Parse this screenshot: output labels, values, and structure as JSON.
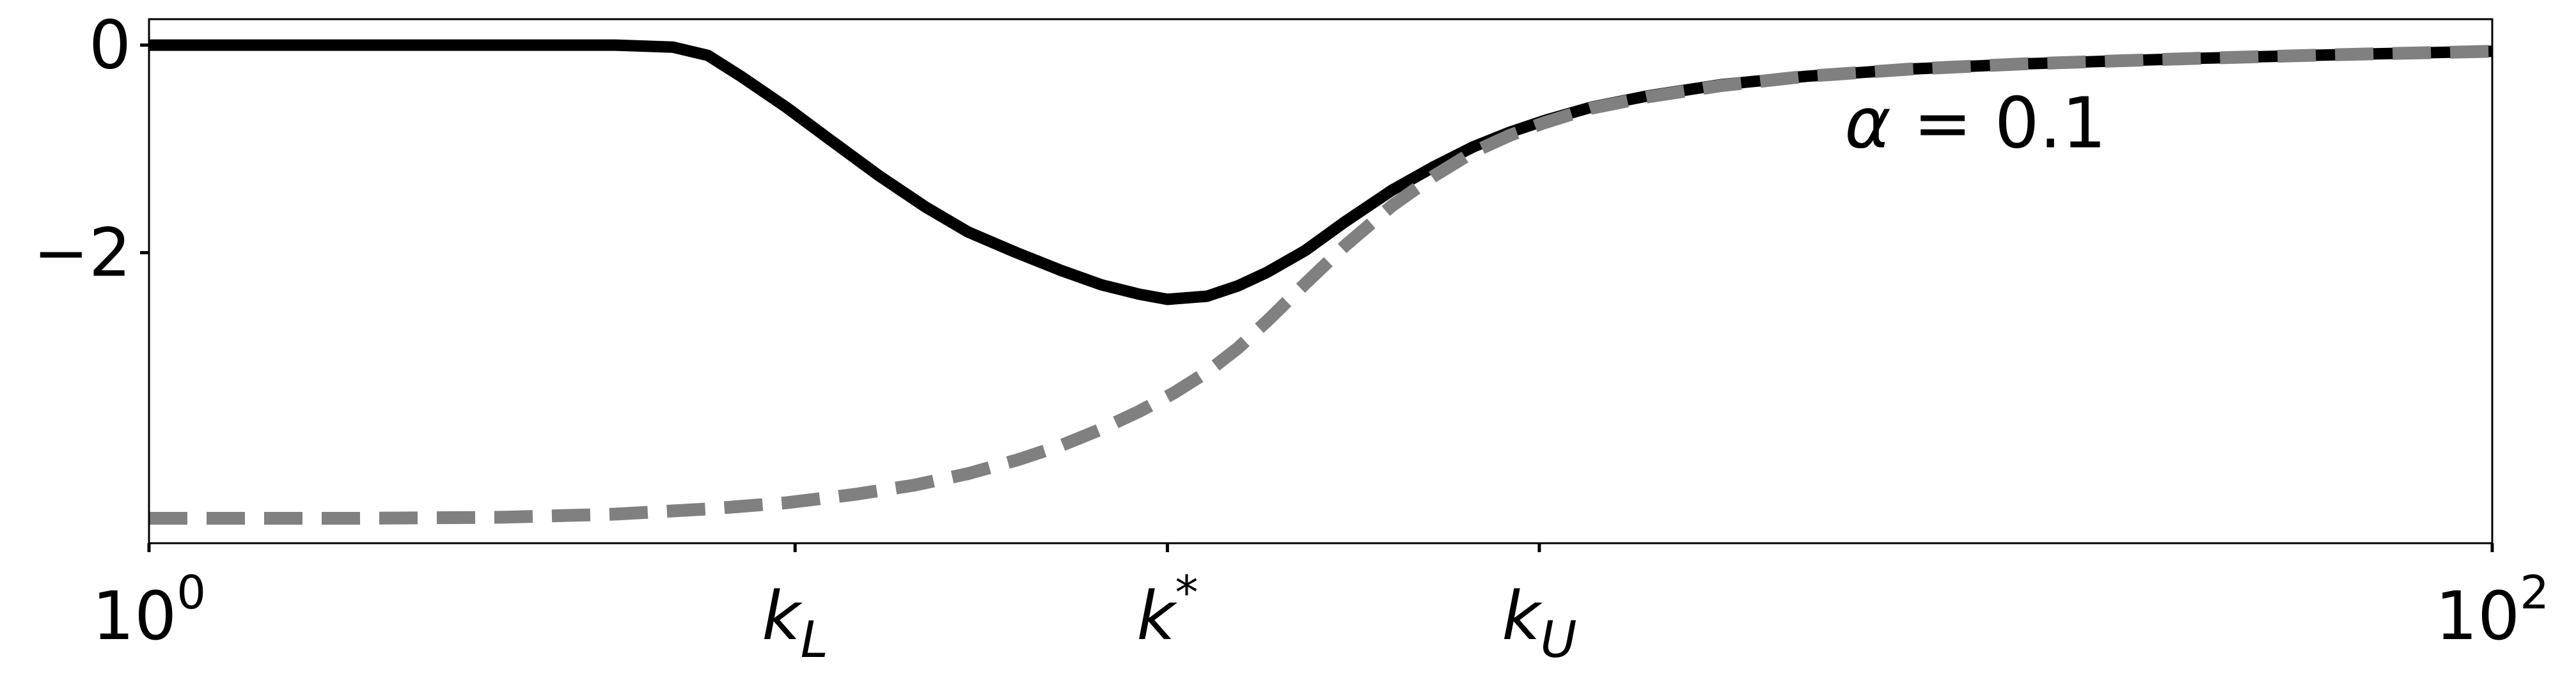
{
  "chart_data": {
    "type": "line",
    "x_scale": "log",
    "xlim": [
      1,
      100
    ],
    "ylim": [
      -4.8,
      0.25
    ],
    "grid": false,
    "legend": "none",
    "x_ticks": [
      {
        "value": 1,
        "label_base": "10",
        "label_sup": "0",
        "label_sub": ""
      },
      {
        "value": 3.56,
        "label_base": "k",
        "label_sup": "",
        "label_sub": "L"
      },
      {
        "value": 7.4,
        "label_base": "k",
        "label_sup": "*",
        "label_sub": ""
      },
      {
        "value": 15.37,
        "label_base": "k",
        "label_sup": "",
        "label_sub": "U"
      },
      {
        "value": 100,
        "label_base": "10",
        "label_sup": "2",
        "label_sub": ""
      }
    ],
    "y_ticks": [
      {
        "value": 0,
        "label": "0"
      },
      {
        "value": -2,
        "label": "−2"
      }
    ],
    "annotation": {
      "text_symbol": "α",
      "text_rest": " = 0.1",
      "x": 28,
      "y": -0.75
    },
    "series": [
      {
        "style": "solid",
        "color": "#000000",
        "x": [
          1,
          1.5,
          2,
          2.5,
          2.8,
          3.0,
          3.2,
          3.5,
          3.8,
          4.2,
          4.6,
          5.0,
          5.5,
          6.0,
          6.5,
          7.0,
          7.4,
          8.0,
          8.5,
          9.0,
          9.7,
          10.5,
          11.5,
          12.5,
          13.5,
          14.5,
          15.5,
          17,
          19,
          22,
          26,
          32,
          40,
          55,
          75,
          100
        ],
        "y": [
          0.0,
          0.0,
          0.0,
          0.0,
          -0.02,
          -0.1,
          -0.3,
          -0.6,
          -0.9,
          -1.26,
          -1.56,
          -1.8,
          -2.0,
          -2.17,
          -2.31,
          -2.4,
          -2.45,
          -2.42,
          -2.32,
          -2.19,
          -1.98,
          -1.7,
          -1.4,
          -1.17,
          -0.98,
          -0.84,
          -0.73,
          -0.6,
          -0.49,
          -0.38,
          -0.3,
          -0.23,
          -0.18,
          -0.13,
          -0.09,
          -0.06
        ]
      },
      {
        "style": "dashed",
        "color": "#808080",
        "x": [
          1,
          1.5,
          2,
          2.5,
          3.0,
          3.5,
          4.0,
          4.5,
          5.0,
          5.5,
          6.0,
          6.5,
          7.0,
          7.5,
          8.0,
          8.5,
          9.0,
          9.7,
          10.5,
          11.5,
          12.5,
          13.5,
          14.5,
          15.5,
          17,
          19,
          22,
          26,
          32,
          40,
          55,
          75,
          100
        ],
        "y": [
          -4.56,
          -4.56,
          -4.55,
          -4.52,
          -4.47,
          -4.41,
          -4.33,
          -4.24,
          -4.13,
          -4.0,
          -3.86,
          -3.7,
          -3.53,
          -3.35,
          -3.15,
          -2.92,
          -2.66,
          -2.3,
          -1.93,
          -1.55,
          -1.26,
          -1.03,
          -0.87,
          -0.75,
          -0.61,
          -0.5,
          -0.39,
          -0.3,
          -0.23,
          -0.18,
          -0.13,
          -0.09,
          -0.06
        ]
      }
    ]
  }
}
